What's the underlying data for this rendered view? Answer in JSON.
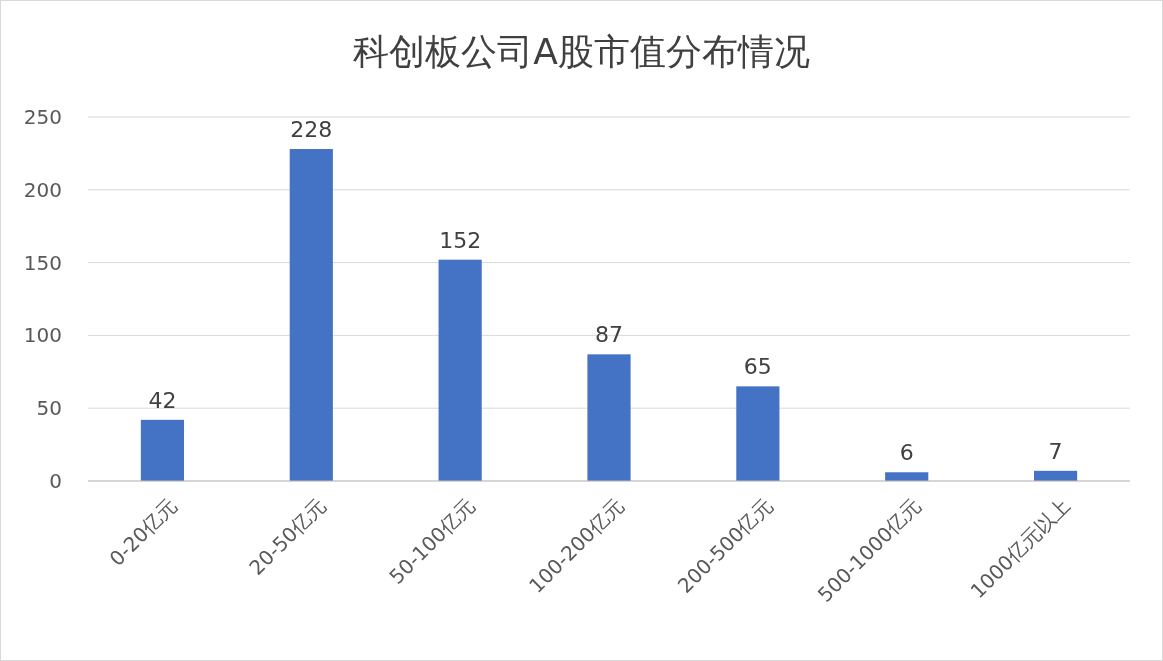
{
  "chart_data": {
    "type": "bar",
    "title": "科创板公司A股市值分布情况",
    "categories": [
      "0-20亿元",
      "20-50亿元",
      "50-100亿元",
      "100-200亿元",
      "200-500亿元",
      "500-1000亿元",
      "1000亿元以上"
    ],
    "values": [
      42,
      228,
      152,
      87,
      65,
      6,
      7
    ],
    "color": "#4472c4",
    "ylim": [
      0,
      250
    ],
    "yticks": [
      0,
      50,
      100,
      150,
      200,
      250
    ],
    "grid": "y",
    "data_labels": true
  }
}
